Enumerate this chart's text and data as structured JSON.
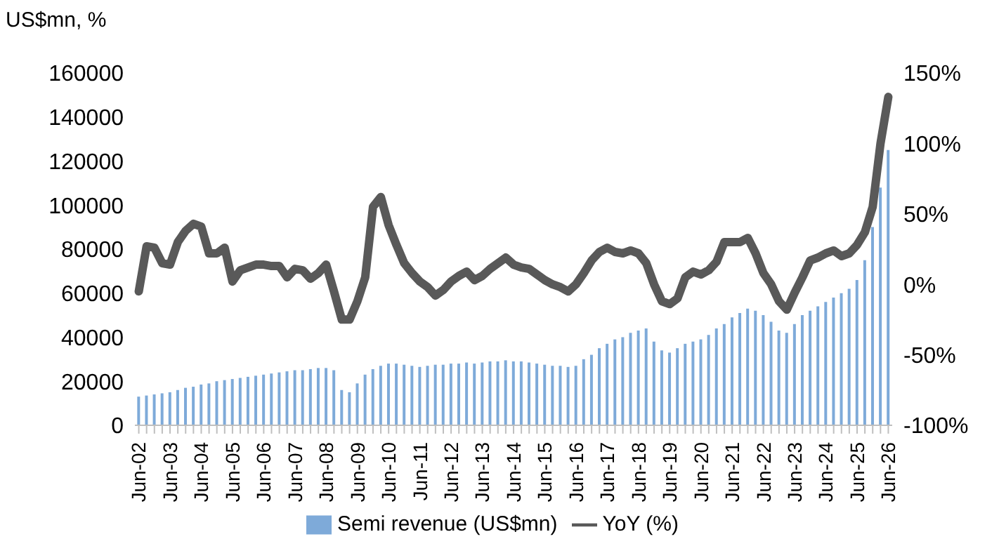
{
  "chart_data": {
    "type": "bar",
    "ylabel": "US$mn, %",
    "categories": [
      "Jun-02",
      null,
      null,
      null,
      "Jun-03",
      null,
      null,
      null,
      "Jun-04",
      null,
      null,
      null,
      "Jun-05",
      null,
      null,
      null,
      "Jun-06",
      null,
      null,
      null,
      "Jun-07",
      null,
      null,
      null,
      "Jun-08",
      null,
      null,
      null,
      "Jun-09",
      null,
      null,
      null,
      "Jun-10",
      null,
      null,
      null,
      "Jun-11",
      null,
      null,
      null,
      "Jun-12",
      null,
      null,
      null,
      "Jun-13",
      null,
      null,
      null,
      "Jun-14",
      null,
      null,
      null,
      "Jun-15",
      null,
      null,
      null,
      "Jun-16",
      null,
      null,
      null,
      "Jun-17",
      null,
      null,
      null,
      "Jun-18",
      null,
      null,
      null,
      "Jun-19",
      null,
      null,
      null,
      "Jun-20",
      null,
      null,
      null,
      "Jun-21",
      null,
      null,
      null,
      "Jun-22",
      null,
      null,
      null,
      "Jun-23",
      null,
      null,
      null,
      "Jun-24",
      null,
      null,
      null,
      "Jun-25",
      null,
      null,
      null,
      "Jun-26"
    ],
    "series": [
      {
        "name": "Semi revenue (US$mn)",
        "color": "#7eaad9",
        "values": [
          13000,
          13500,
          14000,
          14500,
          15000,
          16000,
          17000,
          17500,
          18500,
          19000,
          20000,
          20500,
          21000,
          21500,
          22000,
          22500,
          23000,
          23500,
          24000,
          24500,
          25000,
          25000,
          25500,
          26000,
          26000,
          25000,
          16000,
          15000,
          19000,
          23000,
          25500,
          27000,
          28000,
          28000,
          27500,
          27000,
          26500,
          27000,
          27500,
          27500,
          28000,
          28000,
          28500,
          28000,
          28500,
          29000,
          29000,
          29500,
          29000,
          29000,
          28500,
          28000,
          27500,
          27000,
          27000,
          26500,
          27000,
          30000,
          32000,
          35000,
          37000,
          39000,
          40000,
          42000,
          43000,
          44000,
          38000,
          34000,
          33000,
          35000,
          37000,
          38000,
          39000,
          41000,
          44000,
          46000,
          49000,
          51000,
          53000,
          52000,
          50000,
          47000,
          43000,
          42000,
          46000,
          50000,
          52000,
          54000,
          56000,
          58000,
          60000,
          62000,
          66000,
          75000,
          90000,
          108000,
          125000
        ]
      },
      {
        "name": "YoY (%)",
        "type": "line",
        "axis": "y2",
        "color": "#595959",
        "values": [
          -5,
          27,
          26,
          15,
          14,
          30,
          38,
          43,
          41,
          22,
          22,
          26,
          2,
          10,
          12,
          14,
          14,
          13,
          13,
          5,
          11,
          10,
          4,
          8,
          14,
          -5,
          -25,
          -25,
          -12,
          5,
          55,
          62,
          42,
          28,
          15,
          8,
          2,
          -2,
          -8,
          -4,
          2,
          6,
          9,
          3,
          6,
          11,
          15,
          19,
          14,
          12,
          11,
          7,
          3,
          0,
          -2,
          -5,
          0,
          8,
          17,
          23,
          26,
          23,
          22,
          24,
          22,
          15,
          0,
          -12,
          -14,
          -10,
          5,
          9,
          7,
          10,
          16,
          30,
          30,
          30,
          33,
          22,
          8,
          0,
          -12,
          -18,
          -6,
          5,
          17,
          19,
          22,
          24,
          20,
          22,
          28,
          37,
          55,
          100,
          133
        ]
      }
    ],
    "ylim": [
      0,
      160000
    ],
    "yticks": [
      0,
      20000,
      40000,
      60000,
      80000,
      100000,
      120000,
      140000,
      160000
    ],
    "y2lim": [
      -100,
      150
    ],
    "y2ticks": [
      {
        "value": -100,
        "label": "-100%"
      },
      {
        "value": -50,
        "label": "-50%"
      },
      {
        "value": 0,
        "label": "0%"
      },
      {
        "value": 50,
        "label": "50%"
      },
      {
        "value": 100,
        "label": "100%"
      },
      {
        "value": 150,
        "label": "150%"
      }
    ],
    "legend": "bottom"
  }
}
